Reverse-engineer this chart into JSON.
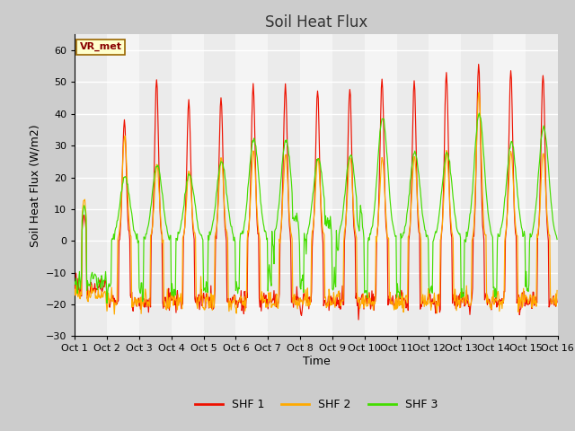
{
  "title": "Soil Heat Flux",
  "ylabel": "Soil Heat Flux (W/m2)",
  "xlabel": "Time",
  "ylim": [
    -30,
    65
  ],
  "yticks": [
    -30,
    -20,
    -10,
    0,
    10,
    20,
    30,
    40,
    50,
    60
  ],
  "xtick_labels": [
    "Oct 1",
    "Oct 2",
    "Oct 3",
    "Oct 4",
    "Oct 5",
    "Oct 6",
    "Oct 7",
    "Oct 8",
    "Oct 9",
    "Oct 10",
    "Oct 11",
    "Oct 12",
    "Oct 13",
    "Oct 14",
    "Oct 15",
    "Oct 16"
  ],
  "colors": {
    "SHF1": "#ee1100",
    "SHF2": "#ffaa00",
    "SHF3": "#44dd00"
  },
  "legend_labels": [
    "SHF 1",
    "SHF 2",
    "SHF 3"
  ],
  "annotation_text": "VR_met",
  "n_days": 15,
  "pts_per_day": 48,
  "title_fontsize": 12,
  "label_fontsize": 9,
  "tick_fontsize": 8,
  "bg_bands": [
    "#ebebeb",
    "#f4f4f4"
  ],
  "grid_color": "#ffffff",
  "fig_bg": "#cccccc"
}
